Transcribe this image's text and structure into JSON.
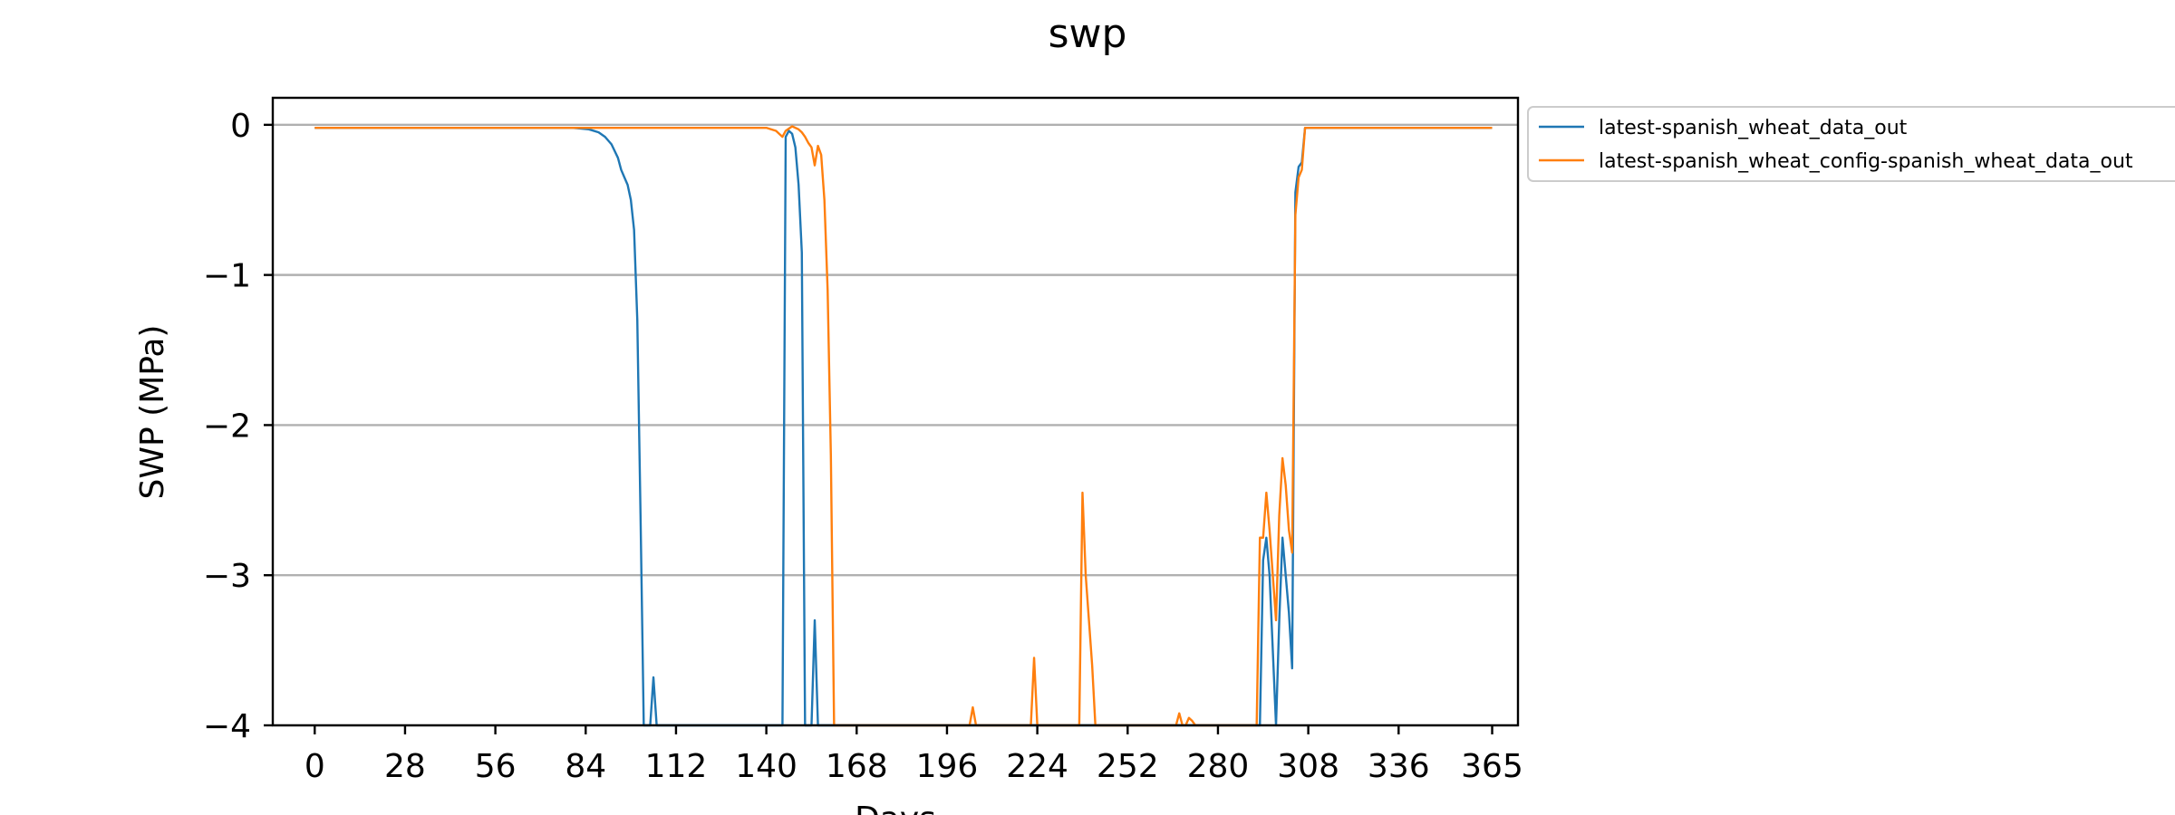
{
  "chart_data": {
    "type": "line",
    "title": "swp",
    "xlabel": "Days",
    "ylabel": "SWP (MPa)",
    "xlim": [
      -13,
      373
    ],
    "ylim": [
      -4,
      0.18
    ],
    "xticks": [
      0,
      28,
      56,
      84,
      112,
      140,
      168,
      196,
      224,
      252,
      280,
      308,
      336,
      365
    ],
    "yticks": [
      0,
      -1,
      -2,
      -3,
      -4
    ],
    "ytick_labels": [
      "0",
      "−1",
      "−2",
      "−3",
      "−4"
    ],
    "grid": "y",
    "legend_placement": "outside-upper-right",
    "series": [
      {
        "name": "latest-spanish_wheat_data_out",
        "color": "#1f77b4",
        "x": [
          0,
          20,
          40,
          60,
          80,
          85,
          88,
          90,
          92,
          94,
          95,
          96,
          97,
          98,
          99,
          100,
          101,
          102,
          103,
          104,
          105,
          106,
          107,
          108,
          109,
          110,
          112,
          130,
          145,
          146,
          147,
          148,
          149,
          150,
          151,
          152,
          153,
          154,
          155,
          156,
          157,
          158,
          159,
          160,
          180,
          200,
          220,
          240,
          260,
          280,
          293,
          294,
          295,
          296,
          297,
          298,
          299,
          300,
          301,
          302,
          303,
          304,
          305,
          306,
          307,
          308,
          310,
          330,
          350,
          365
        ],
        "y": [
          -0.02,
          -0.02,
          -0.02,
          -0.02,
          -0.02,
          -0.03,
          -0.05,
          -0.08,
          -0.13,
          -0.22,
          -0.3,
          -0.35,
          -0.4,
          -0.5,
          -0.7,
          -1.3,
          -2.6,
          -4.0,
          -4.0,
          -4.0,
          -3.68,
          -4.0,
          -4.0,
          -4.0,
          -4.0,
          -4.0,
          -4.0,
          -4.0,
          -4.0,
          -0.08,
          -0.04,
          -0.06,
          -0.15,
          -0.4,
          -0.85,
          -4.0,
          -4.0,
          -4.0,
          -3.3,
          -4.0,
          -4.0,
          -4.0,
          -4.0,
          -4.0,
          -4.0,
          -4.0,
          -4.0,
          -4.0,
          -4.0,
          -4.0,
          -4.0,
          -2.9,
          -2.75,
          -3.0,
          -3.5,
          -4.0,
          -3.3,
          -2.75,
          -3.0,
          -3.25,
          -3.62,
          -0.45,
          -0.28,
          -0.25,
          -0.02,
          -0.02,
          -0.02,
          -0.02,
          -0.02,
          -0.02
        ]
      },
      {
        "name": "latest-spanish_wheat_config-spanish_wheat_data_out",
        "color": "#ff7f0e",
        "x": [
          0,
          40,
          80,
          120,
          140,
          143,
          145,
          146,
          148,
          150,
          151,
          152,
          153,
          154,
          155,
          156,
          157,
          158,
          159,
          160,
          161,
          162,
          180,
          200,
          203,
          204,
          205,
          220,
          221,
          222,
          223,
          224,
          236,
          237,
          238,
          239,
          240,
          241,
          242,
          250,
          260,
          267,
          268,
          269,
          270,
          271,
          272,
          273,
          274,
          275,
          276,
          290,
          291,
          292,
          293,
          294,
          295,
          296,
          297,
          298,
          299,
          300,
          301,
          302,
          303,
          304,
          305,
          306,
          307,
          308,
          310,
          330,
          350,
          365
        ],
        "y": [
          -0.02,
          -0.02,
          -0.02,
          -0.02,
          -0.02,
          -0.04,
          -0.08,
          -0.04,
          -0.01,
          -0.03,
          -0.05,
          -0.08,
          -0.12,
          -0.15,
          -0.27,
          -0.14,
          -0.2,
          -0.5,
          -1.1,
          -2.2,
          -4.0,
          -4.0,
          -4.0,
          -4.0,
          -4.0,
          -3.88,
          -4.0,
          -4.0,
          -4.0,
          -4.0,
          -3.55,
          -4.0,
          -4.0,
          -4.0,
          -2.45,
          -3.0,
          -3.3,
          -3.6,
          -4.0,
          -4.0,
          -4.0,
          -4.0,
          -3.92,
          -4.0,
          -4.0,
          -3.95,
          -3.97,
          -4.0,
          -4.0,
          -4.0,
          -4.0,
          -4.0,
          -4.0,
          -4.0,
          -2.75,
          -2.75,
          -2.45,
          -2.7,
          -3.0,
          -3.3,
          -2.6,
          -2.22,
          -2.4,
          -2.7,
          -2.85,
          -0.6,
          -0.35,
          -0.3,
          -0.02,
          -0.02,
          -0.02,
          -0.02,
          -0.02,
          -0.02
        ]
      }
    ]
  }
}
